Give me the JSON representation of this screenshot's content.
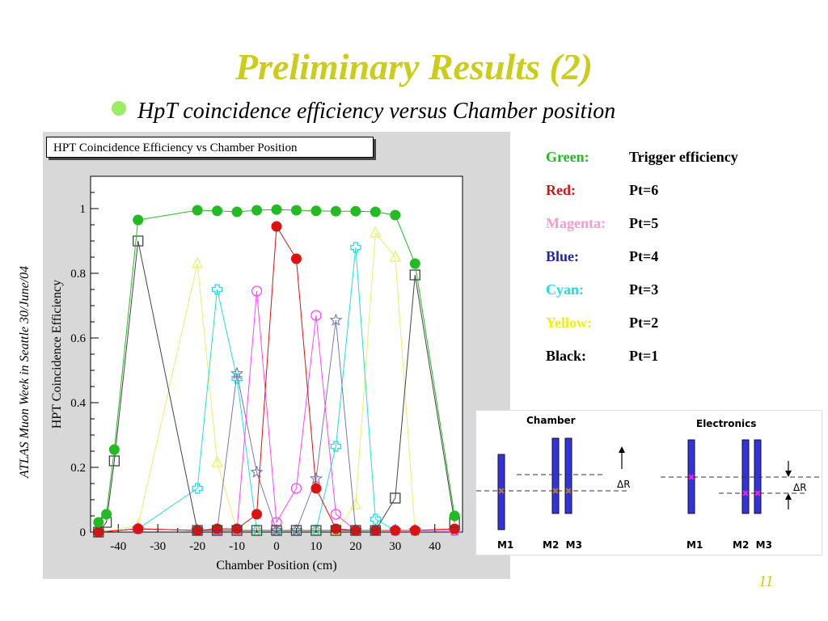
{
  "slide": {
    "title": "Preliminary Results (2)",
    "bullet": "HpT coincidence efficiency versus Chamber position",
    "side_note": "ATLAS Muon Week in Seattle 30/June/04",
    "page_number": "11"
  },
  "legend": [
    {
      "key": "Green:",
      "value": "Trigger efficiency",
      "color": "#22bb22"
    },
    {
      "key": "Red:",
      "value": "Pt=6",
      "color": "#dd1111"
    },
    {
      "key": "Magenta:",
      "value": "Pt=5",
      "color": "#ff99cc"
    },
    {
      "key": "Blue:",
      "value": "Pt=4",
      "color": "#2222aa"
    },
    {
      "key": "Cyan:",
      "value": "Pt=3",
      "color": "#22dddd"
    },
    {
      "key": "Yellow:",
      "value": "Pt=2",
      "color": "#eeee11"
    },
    {
      "key": "Black:",
      "value": "Pt=1",
      "color": "#000000"
    }
  ],
  "diagram": {
    "chamber_title": "Chamber",
    "electronics_title": "Electronics",
    "delta_r": "ΔR",
    "m1": "M1",
    "m2m3": "M2  M3"
  },
  "chart_data": {
    "type": "scatter",
    "title": "HPT Coincidence Efficiency vs Chamber Position",
    "xlabel": "Chamber Position (cm)",
    "ylabel": "HPT Coincidence Efficiency",
    "xlim": [
      -47,
      47
    ],
    "ylim": [
      0,
      1.1
    ],
    "xticks": [
      -40,
      -30,
      -20,
      -10,
      0,
      10,
      20,
      30,
      40
    ],
    "yticks": [
      0,
      0.2,
      0.4,
      0.6,
      0.8,
      1
    ],
    "ytick_labels": [
      "0",
      "0.2",
      "0.4",
      "0.6",
      "0.8",
      "1"
    ],
    "series": [
      {
        "name": "Trigger efficiency",
        "color": "#22bb22",
        "marker": "filled-circle",
        "x": [
          -45,
          -43,
          -41,
          -35,
          -20,
          -15,
          -10,
          -5,
          0,
          5,
          10,
          15,
          20,
          25,
          30,
          35,
          45
        ],
        "y": [
          0.03,
          0.055,
          0.255,
          0.965,
          0.995,
          0.993,
          0.99,
          0.995,
          0.997,
          0.995,
          0.993,
          0.992,
          0.992,
          0.99,
          0.98,
          0.83,
          0.05
        ]
      },
      {
        "name": "Pt=6",
        "color": "#dd1111",
        "marker": "filled-circle",
        "x": [
          -45,
          -35,
          -20,
          -15,
          -10,
          -5,
          0,
          5,
          10,
          15,
          20,
          25,
          30,
          35,
          45
        ],
        "y": [
          0,
          0.01,
          0.005,
          0.01,
          0.01,
          0.055,
          0.945,
          0.845,
          0.135,
          0.01,
          0.005,
          0.005,
          0.005,
          0.005,
          0.01
        ]
      },
      {
        "name": "Pt=5",
        "color": "#ff44ff",
        "marker": "open-circle",
        "x": [
          -45,
          -35,
          -20,
          -15,
          -10,
          -5,
          0,
          5,
          10,
          15,
          20,
          25,
          30,
          35,
          45
        ],
        "y": [
          0,
          0.01,
          0.005,
          0.005,
          0.005,
          0.745,
          0.03,
          0.135,
          0.67,
          0.055,
          0.005,
          0.005,
          0.005,
          0.005,
          0.005
        ]
      },
      {
        "name": "Pt=4",
        "color": "#7777bb",
        "marker": "star",
        "x": [
          -45,
          -35,
          -20,
          -15,
          -10,
          -5,
          0,
          5,
          10,
          15,
          20,
          25,
          30,
          35,
          45
        ],
        "y": [
          0,
          0.01,
          0.005,
          0.005,
          0.49,
          0.185,
          0.005,
          0.005,
          0.165,
          0.655,
          0.005,
          0.005,
          0.005,
          0.005,
          0.005
        ]
      },
      {
        "name": "Pt=3",
        "color": "#22dddd",
        "marker": "open-cross",
        "x": [
          -45,
          -35,
          -20,
          -15,
          -10,
          -5,
          0,
          5,
          10,
          15,
          20,
          25,
          30,
          35,
          45
        ],
        "y": [
          0,
          0.01,
          0.135,
          0.75,
          0.475,
          0.005,
          0.005,
          0.005,
          0.005,
          0.265,
          0.88,
          0.04,
          0.005,
          0.005,
          0.005
        ]
      },
      {
        "name": "Pt=2",
        "color": "#eeee66",
        "marker": "open-triangle",
        "x": [
          -45,
          -35,
          -20,
          -15,
          -10,
          -5,
          0,
          5,
          10,
          15,
          20,
          25,
          30,
          35,
          45
        ],
        "y": [
          0,
          0.02,
          0.83,
          0.215,
          0.005,
          0.005,
          0.005,
          0.005,
          0.005,
          0.005,
          0.085,
          0.925,
          0.85,
          0.005,
          0.005
        ]
      },
      {
        "name": "Pt=1",
        "color": "#444444",
        "marker": "open-square",
        "x": [
          -45,
          -43,
          -41,
          -35,
          -20,
          -15,
          -10,
          -5,
          0,
          5,
          10,
          15,
          20,
          25,
          30,
          35,
          45
        ],
        "y": [
          0,
          0.03,
          0.22,
          0.9,
          0.005,
          0.005,
          0.005,
          0.005,
          0.005,
          0.005,
          0.005,
          0.005,
          0.005,
          0.005,
          0.105,
          0.795,
          0.03
        ]
      }
    ]
  }
}
